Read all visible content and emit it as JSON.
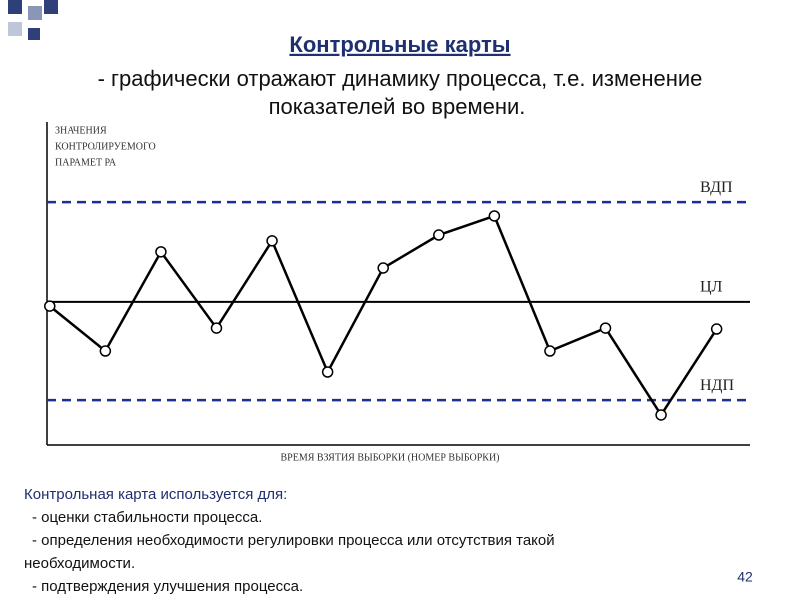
{
  "slide": {
    "title": "Контрольные карты",
    "subtitle_lines": [
      "- графически отражают динамику процесса, т.е. изменение",
      "показателей во времени."
    ],
    "body_lines": [
      "Контрольная карта используется для:",
      "- оценки стабильности процесса.",
      "- определения необходимости регулировки процесса или отсутствия такой",
      "необходимости.",
      "- подтверждения улучшения процесса."
    ],
    "page_number": "42"
  },
  "chart_data": {
    "type": "line",
    "y_label_lines": [
      "ЗНАЧЕНИЯ",
      "КОНТРОЛИРУЕМОГО",
      "ПАРАМЕТ РА"
    ],
    "x_label": "ВРЕМЯ ВЗЯТИЯ ВЫБОРКИ (НОМЕР ВЫБОРКИ)",
    "x": [
      1,
      2,
      3,
      4,
      5,
      6,
      7,
      8,
      9,
      10,
      11,
      12,
      13
    ],
    "series": [
      {
        "color": "#000000",
        "values": [
          43.0,
          29.1,
          59.8,
          36.2,
          63.2,
          22.6,
          54.8,
          65.0,
          70.9,
          29.1,
          36.2,
          9.3,
          35.9
        ]
      }
    ],
    "control_lines": [
      {
        "label": "ВДП",
        "value": 75.2,
        "color": "#1f2f8f",
        "dashed": true
      },
      {
        "label": "ЦЛ",
        "value": 44.3,
        "color": "#000000",
        "dashed": false
      },
      {
        "label": "НДП",
        "value": 13.9,
        "color": "#1f2f8f",
        "dashed": true
      }
    ],
    "xlim": [
      0.95,
      13.6
    ],
    "ylim": [
      0,
      100
    ]
  }
}
